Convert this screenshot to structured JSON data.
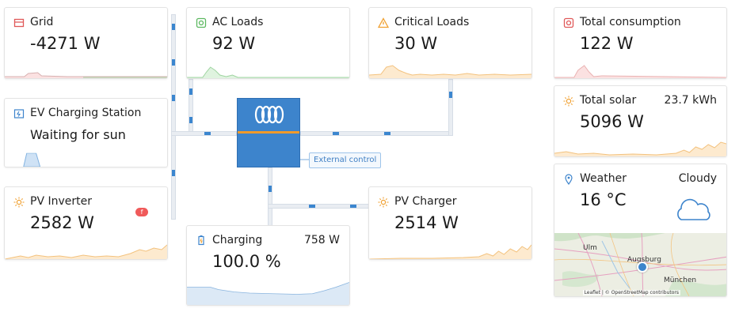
{
  "colors": {
    "accent": "#3d84cc",
    "orange": "#f09a2b",
    "red": "#f05a5a",
    "green": "#8bd39a"
  },
  "grid": {
    "title": "Grid",
    "value": "-4271 W",
    "icon": "grid-icon"
  },
  "ac_loads": {
    "title": "AC Loads",
    "value": "92 W",
    "icon": "ac-loads-icon"
  },
  "critical_loads": {
    "title": "Critical Loads",
    "value": "30 W",
    "icon": "warning-icon"
  },
  "ev": {
    "title": "EV Charging Station",
    "value": "Waiting for sun",
    "icon": "ev-charger-icon"
  },
  "pv_inverter": {
    "title": "PV Inverter",
    "value": "2582 W",
    "icon": "sun-icon"
  },
  "battery": {
    "title": "Charging",
    "value": "100.0 %",
    "power": "758 W",
    "icon": "battery-icon"
  },
  "pv_charger": {
    "title": "PV Charger",
    "value": "2514 W",
    "icon": "sun-icon"
  },
  "total_consumption": {
    "title": "Total consumption",
    "value": "122 W",
    "icon": "consumption-icon"
  },
  "total_solar": {
    "title": "Total solar",
    "value": "5096 W",
    "energy": "23.7 kWh",
    "icon": "sun-icon"
  },
  "weather": {
    "title": "Weather",
    "temperature": "16 °C",
    "condition": "Cloudy",
    "icon": "location-pin-icon",
    "map": {
      "labels": [
        "Ulm",
        "Augsburg",
        "München"
      ],
      "attribution": "Leaflet | © OpenStreetMap contributors"
    }
  },
  "external_control": {
    "label": "External control"
  }
}
